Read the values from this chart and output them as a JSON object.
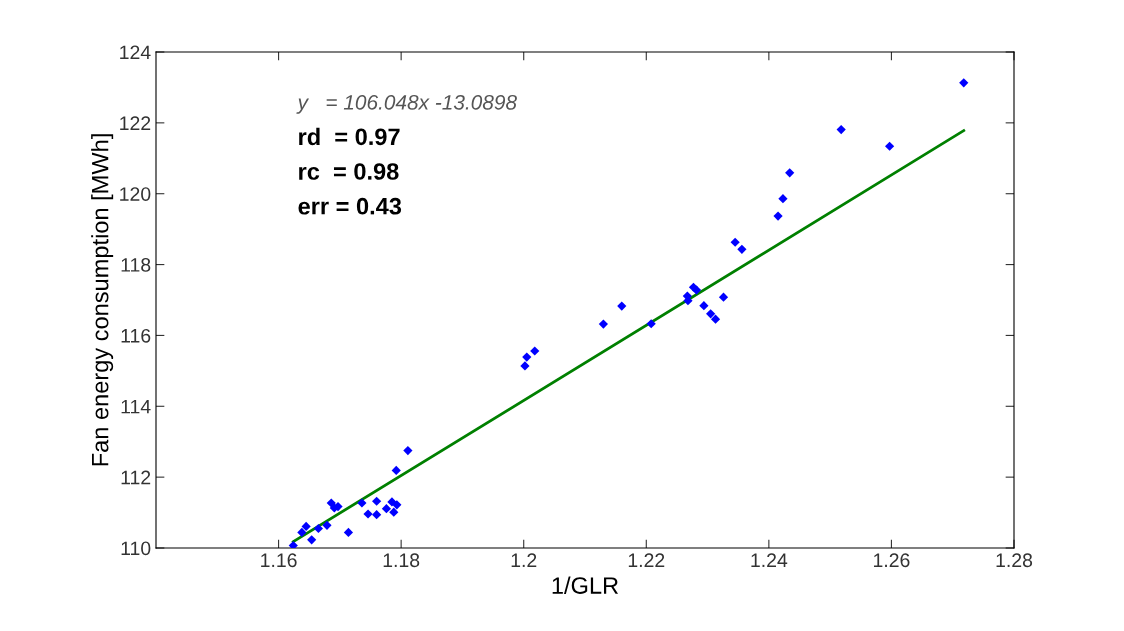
{
  "chart_data": {
    "type": "scatter",
    "xlabel": "1/GLR",
    "ylabel": "Fan energy consumption [MWh]",
    "xlim": [
      1.14,
      1.28
    ],
    "xticks": [
      1.16,
      1.18,
      1.2,
      1.22,
      1.24,
      1.26,
      1.28
    ],
    "ylim": [
      110,
      124
    ],
    "yticks": [
      110,
      112,
      114,
      116,
      118,
      120,
      122,
      124
    ],
    "grid": false,
    "legend": false,
    "annotations": [
      "y   = 106.048x -13.0898",
      "rd  = 0.97",
      "rc  = 0.98",
      "err = 0.43"
    ],
    "series": [
      {
        "color": "#0000ff",
        "marker": "diamond",
        "x": [
          1.1624,
          1.1638,
          1.1645,
          1.1654,
          1.1665,
          1.1679,
          1.1686,
          1.1691,
          1.1697,
          1.1714,
          1.1736,
          1.1746,
          1.176,
          1.176,
          1.1776,
          1.1785,
          1.1788,
          1.1793,
          1.1792,
          1.1811,
          1.2002,
          1.2005,
          1.2018,
          1.213,
          1.216,
          1.2208,
          1.2267,
          1.2268,
          1.2277,
          1.2282,
          1.2294,
          1.2305,
          1.2313,
          1.2326,
          1.2345,
          1.2356,
          1.2415,
          1.2423,
          1.2434,
          1.2518,
          1.2597,
          1.2718
        ],
        "values": [
          110.07,
          110.44,
          110.61,
          110.23,
          110.55,
          110.64,
          111.27,
          111.13,
          111.17,
          110.44,
          111.27,
          110.96,
          110.94,
          111.32,
          111.11,
          111.3,
          111.01,
          111.22,
          112.19,
          112.75,
          115.14,
          115.39,
          115.56,
          116.32,
          116.83,
          116.33,
          117.11,
          116.98,
          117.36,
          117.28,
          116.84,
          116.61,
          116.46,
          117.08,
          118.63,
          118.43,
          119.37,
          119.86,
          120.59,
          121.81,
          121.34,
          123.13
        ]
      },
      {
        "type": "line",
        "color": "#008000",
        "marker": "none",
        "line_style": "solid",
        "x": [
          1.1624,
          1.2718
        ],
        "values": [
          110.18,
          121.78
        ]
      }
    ]
  }
}
